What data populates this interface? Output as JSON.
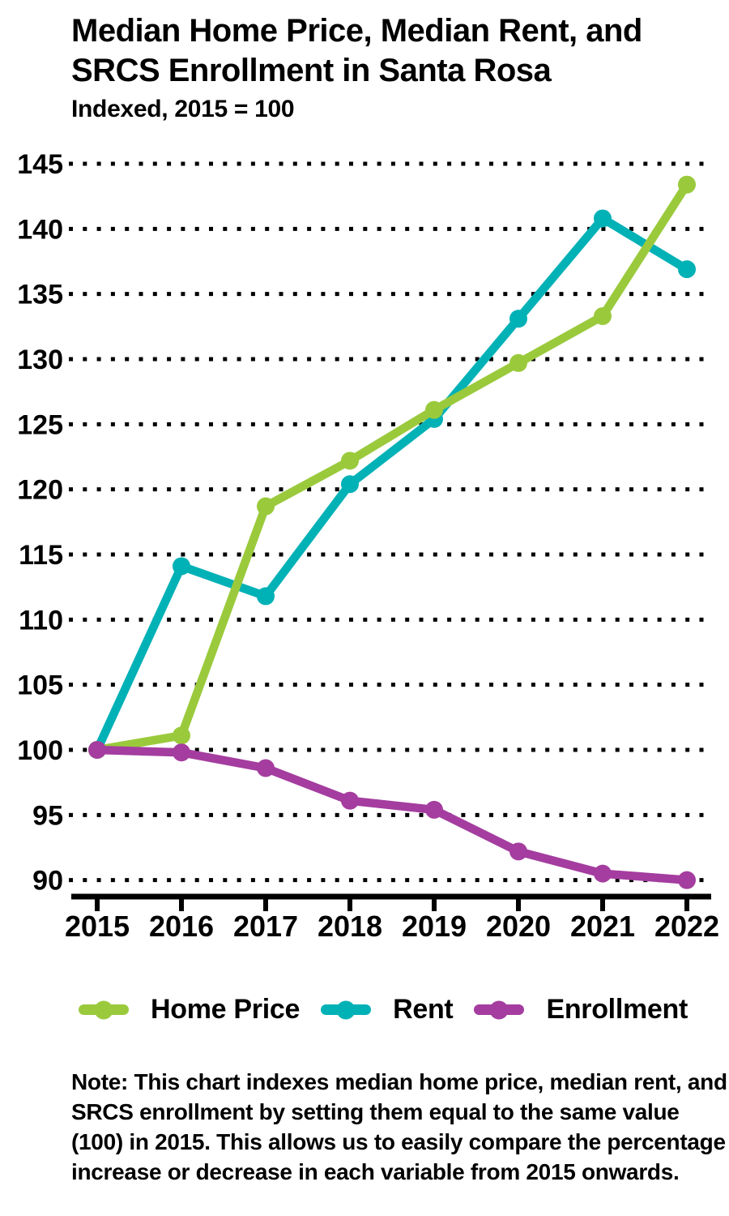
{
  "header": {
    "title": "Median Home Price, Median Rent, and SRCS Enrollment in Santa Rosa",
    "subtitle": "Indexed, 2015 = 100"
  },
  "chart_data": {
    "type": "line",
    "title": "Median Home Price, Median Rent, and SRCS Enrollment in Santa Rosa",
    "subtitle": "Indexed, 2015 = 100",
    "x": [
      "2015",
      "2016",
      "2017",
      "2018",
      "2019",
      "2020",
      "2021",
      "2022"
    ],
    "series": [
      {
        "name": "Home Price",
        "color": "#9aca3c",
        "values": [
          100,
          101.1,
          118.7,
          122.2,
          126.1,
          129.7,
          133.3,
          143.4
        ]
      },
      {
        "name": "Rent",
        "color": "#00b1b6",
        "values": [
          100,
          114.1,
          111.8,
          120.4,
          125.4,
          133.1,
          140.8,
          136.9
        ]
      },
      {
        "name": "Enrollment",
        "color": "#a43d9f",
        "values": [
          100,
          99.8,
          98.6,
          96.1,
          95.4,
          92.2,
          90.5,
          90
        ]
      }
    ],
    "yticks": [
      90,
      95,
      100,
      105,
      110,
      115,
      120,
      125,
      130,
      135,
      140,
      145
    ],
    "ylim": [
      88.5,
      146.5
    ],
    "grid": "horizontal-dotted",
    "grid_color": "#000000",
    "axis_color": "#000000",
    "text_color": "#000000",
    "legend_position": "bottom",
    "draw_order": [
      1,
      0,
      2
    ]
  },
  "note": "Note: This chart indexes median home price, median rent, and SRCS enrollment by setting them equal to the same value (100) in 2015. This allows us to easily compare the percentage increase or decrease in each variable from 2015 onwards."
}
